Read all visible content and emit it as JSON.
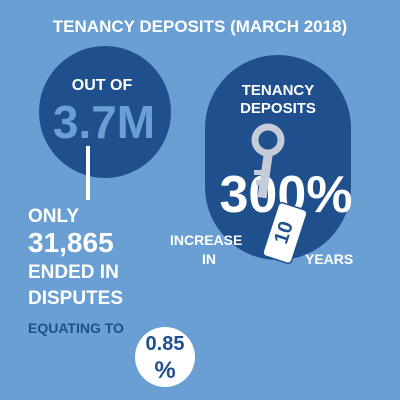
{
  "title": "TENANCY DEPOSITS (MARCH 2018)",
  "left": {
    "out_of": "OUT OF",
    "total": "3.7M",
    "only": "ONLY",
    "count": "31,865",
    "ended_in": "ENDED IN",
    "disputes": "DISPUTES",
    "equating_to": "EQUATING TO",
    "percent_number": "0.85",
    "percent_sign": "%"
  },
  "right": {
    "heading_line1": "TENANCY",
    "heading_line2": "DEPOSITS",
    "increase": "300%",
    "increase_label": "INCREASE",
    "in": "IN",
    "years_number": "10",
    "years": "YEARS"
  }
}
